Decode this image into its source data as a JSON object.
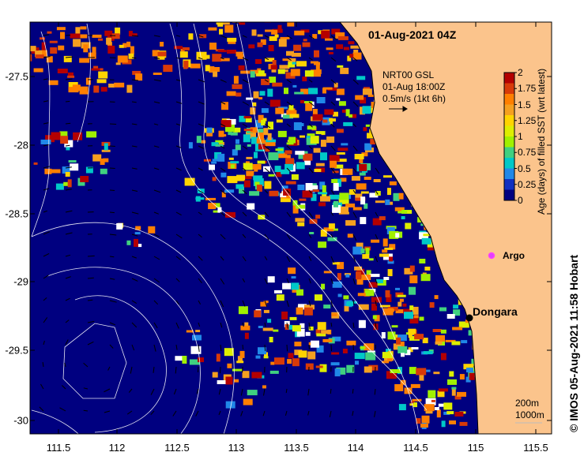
{
  "title": "01-Aug-2021 04Z",
  "current_legend": {
    "line1": "NRT00 GSL",
    "line2": "01-Aug 18:00Z",
    "line3": "0.5m/s (1kt 6h)"
  },
  "colorbar": {
    "title": "Age (days) of filled SST (wrt latest)",
    "ticks": [
      "2",
      "1.75",
      "1.5",
      "1.25",
      "1",
      "0.75",
      "0.5",
      "0.25",
      "0"
    ],
    "colors": [
      "#b40000",
      "#d83a08",
      "#ff7f00",
      "#f5a020",
      "#ffd400",
      "#ddee00",
      "#a0f000",
      "#40d080",
      "#00c8c8",
      "#2088e8",
      "#1030c0",
      "#000080"
    ]
  },
  "x_ticks": [
    "111.5",
    "112",
    "112.5",
    "113",
    "113.5",
    "114",
    "114.5",
    "115",
    "115.5"
  ],
  "y_ticks": [
    "-27.5",
    "-28",
    "-28.5",
    "-29",
    "-29.5",
    "-30"
  ],
  "places": {
    "argo_label": "Argo",
    "dongara_label": "Dongara"
  },
  "bathymetry_legend": {
    "line1": "200m",
    "line2": "1000m"
  },
  "credit": "© IMOS 05-Aug-2021 11:58 Hobart",
  "land_color": "#fbc48c",
  "ocean_color": "#000080"
}
